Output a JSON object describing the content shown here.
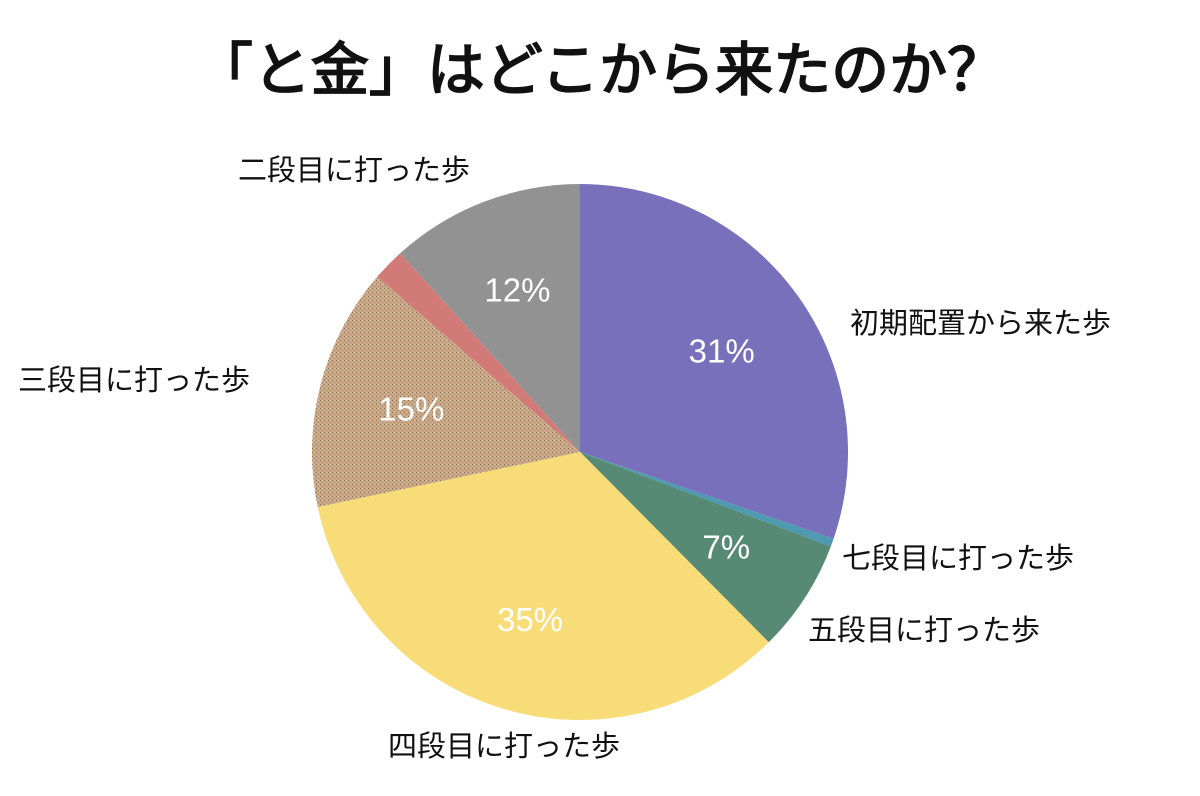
{
  "chart_data": {
    "type": "pie",
    "title": "「と金」はどこから来たのか？",
    "slices": [
      {
        "label": "初期配置から来た歩",
        "value": 31,
        "value_label": "31%",
        "color": "#7870bb",
        "pattern": false
      },
      {
        "label": "七段目に打った歩",
        "value": 0.5,
        "value_label": "",
        "color": "#4e9ab0",
        "pattern": false
      },
      {
        "label": "五段目に打った歩",
        "value": 7,
        "value_label": "7%",
        "color": "#578a74",
        "pattern": false
      },
      {
        "label": "四段目に打った歩",
        "value": 35,
        "value_label": "35%",
        "color": "#f8dc78",
        "pattern": false
      },
      {
        "label": "三段目に打った歩",
        "value": 15,
        "value_label": "15%",
        "color": "#c2a382",
        "pattern": true
      },
      {
        "label": "",
        "value": 2,
        "value_label": "",
        "color": "#d27a78",
        "pattern": false
      },
      {
        "label": "二段目に打った歩",
        "value": 12,
        "value_label": "12%",
        "color": "#929292",
        "pattern": false
      }
    ]
  }
}
